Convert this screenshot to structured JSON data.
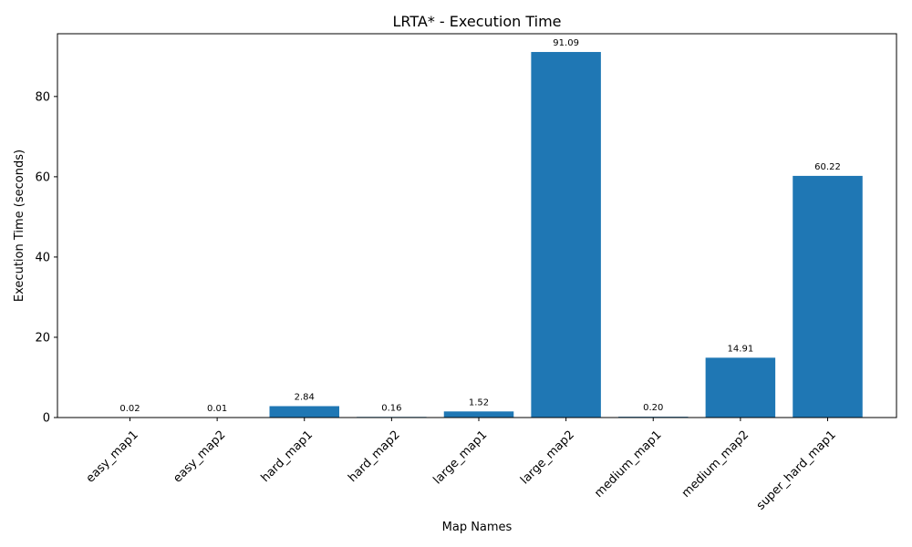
{
  "chart_data": {
    "type": "bar",
    "title": "LRTA* - Execution Time",
    "xlabel": "Map Names",
    "ylabel": "Execution Time (seconds)",
    "categories": [
      "easy_map1",
      "easy_map2",
      "hard_map1",
      "hard_map2",
      "large_map1",
      "large_map2",
      "medium_map1",
      "medium_map2",
      "super_hard_map1"
    ],
    "values": [
      0.02,
      0.01,
      2.84,
      0.16,
      1.52,
      91.09,
      0.2,
      14.91,
      60.22
    ],
    "value_labels": [
      "0.02",
      "0.01",
      "2.84",
      "0.16",
      "1.52",
      "91.09",
      "0.20",
      "14.91",
      "60.22"
    ],
    "ylim": [
      0,
      95.64
    ],
    "yticks": [
      0,
      20,
      40,
      60,
      80
    ],
    "bar_color": "#1f77b4",
    "grid": false,
    "legend": "none"
  }
}
